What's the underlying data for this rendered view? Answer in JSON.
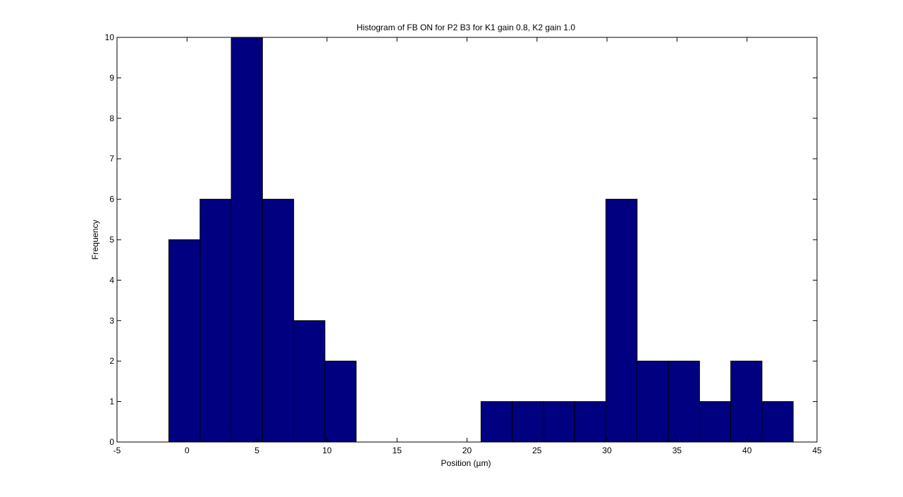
{
  "chart_data": {
    "type": "bar",
    "title": "Histogram of FB ON for P2 B3 for K1 gain 0.8, K2 gain 1.0",
    "xlabel": "Position (µm)",
    "ylabel": "Frequency",
    "xlim": [
      -5,
      45
    ],
    "ylim": [
      0,
      10
    ],
    "xticks": [
      -5,
      0,
      5,
      10,
      15,
      20,
      25,
      30,
      35,
      40,
      45
    ],
    "yticks": [
      0,
      1,
      2,
      3,
      4,
      5,
      6,
      7,
      8,
      9,
      10
    ],
    "grid": false,
    "bar_color": "#000080",
    "bins": [
      {
        "x0": -1.3,
        "x1": 0.93,
        "count": 5
      },
      {
        "x0": 0.93,
        "x1": 3.16,
        "count": 6
      },
      {
        "x0": 3.16,
        "x1": 5.39,
        "count": 10
      },
      {
        "x0": 5.39,
        "x1": 7.62,
        "count": 6
      },
      {
        "x0": 7.62,
        "x1": 9.85,
        "count": 3
      },
      {
        "x0": 9.85,
        "x1": 12.08,
        "count": 2
      },
      {
        "x0": 12.08,
        "x1": 14.31,
        "count": 0
      },
      {
        "x0": 14.31,
        "x1": 16.54,
        "count": 0
      },
      {
        "x0": 16.54,
        "x1": 18.77,
        "count": 0
      },
      {
        "x0": 18.77,
        "x1": 21.0,
        "count": 0
      },
      {
        "x0": 21.0,
        "x1": 23.23,
        "count": 1
      },
      {
        "x0": 23.23,
        "x1": 25.46,
        "count": 1
      },
      {
        "x0": 25.46,
        "x1": 27.69,
        "count": 1
      },
      {
        "x0": 27.69,
        "x1": 29.92,
        "count": 1
      },
      {
        "x0": 29.92,
        "x1": 32.15,
        "count": 6
      },
      {
        "x0": 32.15,
        "x1": 34.38,
        "count": 2
      },
      {
        "x0": 34.38,
        "x1": 36.61,
        "count": 2
      },
      {
        "x0": 36.61,
        "x1": 38.84,
        "count": 1
      },
      {
        "x0": 38.84,
        "x1": 41.07,
        "count": 2
      },
      {
        "x0": 41.07,
        "x1": 43.3,
        "count": 1
      }
    ]
  }
}
